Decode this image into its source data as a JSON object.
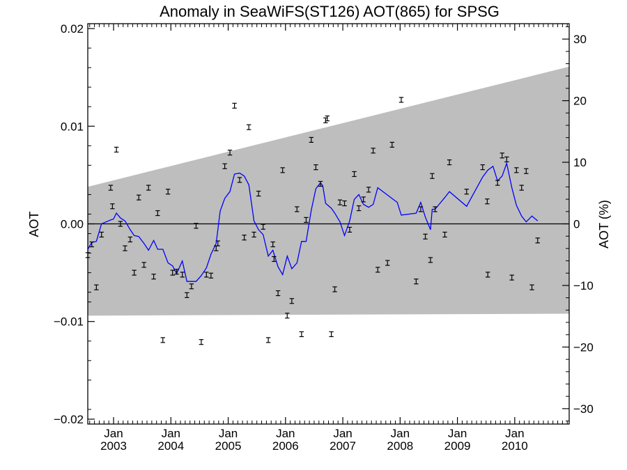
{
  "chart_data": {
    "type": "scatter",
    "title": "Anomaly in SeaWiFS(ST126) AOT(865) for SPSG",
    "ylabel": "AOT",
    "ylabel_right": "AOT (%)",
    "xlim": [
      2002.55,
      2010.95
    ],
    "ylim": [
      -0.0205,
      0.0205
    ],
    "ylim_right": [
      -32.5,
      32.5
    ],
    "x_ticks": [
      {
        "x": 2003.0,
        "top": "Jan",
        "bottom": "2003"
      },
      {
        "x": 2004.0,
        "top": "Jan",
        "bottom": "2004"
      },
      {
        "x": 2005.0,
        "top": "Jan",
        "bottom": "2005"
      },
      {
        "x": 2006.0,
        "top": "Jan",
        "bottom": "2006"
      },
      {
        "x": 2007.0,
        "top": "Jan",
        "bottom": "2007"
      },
      {
        "x": 2008.0,
        "top": "Jan",
        "bottom": "2008"
      },
      {
        "x": 2009.0,
        "top": "Jan",
        "bottom": "2009"
      },
      {
        "x": 2010.0,
        "top": "Jan",
        "bottom": "2010"
      }
    ],
    "y_ticks": [
      {
        "v": 0.02,
        "label": "0.02"
      },
      {
        "v": 0.01,
        "label": "0.01"
      },
      {
        "v": 0.0,
        "label": "0.00"
      },
      {
        "v": -0.01,
        "label": "−0.01"
      },
      {
        "v": -0.02,
        "label": "−0.02"
      }
    ],
    "y_ticks_right": [
      {
        "v": 30,
        "label": "30"
      },
      {
        "v": 20,
        "label": "20"
      },
      {
        "v": 10,
        "label": "10"
      },
      {
        "v": 0,
        "label": "0"
      },
      {
        "v": -10,
        "label": "−10"
      },
      {
        "v": -20,
        "label": "−20"
      },
      {
        "v": -30,
        "label": "−30"
      }
    ],
    "envelope": {
      "x": [
        2002.55,
        2010.95
      ],
      "upper": [
        0.0038,
        0.0161
      ],
      "lower": [
        -0.0094,
        -0.0092
      ],
      "color": "#bebebe"
    },
    "zero_line": 0.0,
    "series": [
      {
        "type": "scatter",
        "error_bars": true,
        "color": "#000000",
        "points": [
          {
            "x": 2002.55,
            "y": -0.0032
          },
          {
            "x": 2002.62,
            "y": -0.0021
          },
          {
            "x": 2002.7,
            "y": -0.0065
          },
          {
            "x": 2002.79,
            "y": -0.0011
          },
          {
            "x": 2002.95,
            "y": 0.0037
          },
          {
            "x": 2002.98,
            "y": 0.0018
          },
          {
            "x": 2003.05,
            "y": 0.0076
          },
          {
            "x": 2003.12,
            "y": 0.0
          },
          {
            "x": 2003.2,
            "y": -0.0025
          },
          {
            "x": 2003.29,
            "y": -0.0016
          },
          {
            "x": 2003.36,
            "y": -0.005
          },
          {
            "x": 2003.44,
            "y": 0.0027
          },
          {
            "x": 2003.53,
            "y": -0.0042
          },
          {
            "x": 2003.61,
            "y": 0.0037
          },
          {
            "x": 2003.7,
            "y": -0.0054
          },
          {
            "x": 2003.77,
            "y": 0.0011
          },
          {
            "x": 2003.86,
            "y": -0.0119
          },
          {
            "x": 2003.95,
            "y": 0.0033
          },
          {
            "x": 2004.03,
            "y": -0.005
          },
          {
            "x": 2004.1,
            "y": -0.0049
          },
          {
            "x": 2004.2,
            "y": -0.0052
          },
          {
            "x": 2004.28,
            "y": -0.0073
          },
          {
            "x": 2004.36,
            "y": -0.0064
          },
          {
            "x": 2004.44,
            "y": -0.0002
          },
          {
            "x": 2004.53,
            "y": -0.0121
          },
          {
            "x": 2004.62,
            "y": -0.0052
          },
          {
            "x": 2004.7,
            "y": -0.0053
          },
          {
            "x": 2004.79,
            "y": -0.0025
          },
          {
            "x": 2004.82,
            "y": -0.002
          },
          {
            "x": 2004.94,
            "y": 0.0059
          },
          {
            "x": 2005.03,
            "y": 0.0073
          },
          {
            "x": 2005.11,
            "y": 0.0121
          },
          {
            "x": 2005.2,
            "y": 0.0045
          },
          {
            "x": 2005.28,
            "y": -0.0014
          },
          {
            "x": 2005.36,
            "y": 0.0099
          },
          {
            "x": 2005.45,
            "y": -0.0011
          },
          {
            "x": 2005.53,
            "y": 0.0031
          },
          {
            "x": 2005.61,
            "y": -0.0003
          },
          {
            "x": 2005.7,
            "y": -0.0119
          },
          {
            "x": 2005.78,
            "y": -0.0021
          },
          {
            "x": 2005.8,
            "y": -0.0036
          },
          {
            "x": 2005.87,
            "y": -0.0071
          },
          {
            "x": 2005.95,
            "y": 0.0055
          },
          {
            "x": 2006.03,
            "y": -0.0094
          },
          {
            "x": 2006.11,
            "y": -0.0079
          },
          {
            "x": 2006.2,
            "y": 0.0015
          },
          {
            "x": 2006.28,
            "y": -0.0113
          },
          {
            "x": 2006.36,
            "y": 0.0004
          },
          {
            "x": 2006.45,
            "y": 0.0086
          },
          {
            "x": 2006.53,
            "y": 0.0058
          },
          {
            "x": 2006.61,
            "y": 0.0041
          },
          {
            "x": 2006.7,
            "y": 0.0106
          },
          {
            "x": 2006.73,
            "y": 0.0108
          },
          {
            "x": 2006.8,
            "y": -0.0113
          },
          {
            "x": 2006.86,
            "y": -0.0067
          },
          {
            "x": 2006.95,
            "y": 0.0022
          },
          {
            "x": 2007.03,
            "y": 0.0021
          },
          {
            "x": 2007.12,
            "y": -0.0006
          },
          {
            "x": 2007.2,
            "y": 0.0051
          },
          {
            "x": 2007.28,
            "y": 0.0016
          },
          {
            "x": 2007.36,
            "y": 0.0025
          },
          {
            "x": 2007.45,
            "y": 0.0035
          },
          {
            "x": 2007.53,
            "y": 0.0075
          },
          {
            "x": 2007.61,
            "y": -0.0047
          },
          {
            "x": 2007.78,
            "y": -0.004
          },
          {
            "x": 2007.86,
            "y": 0.0081
          },
          {
            "x": 2008.02,
            "y": 0.0127
          },
          {
            "x": 2008.28,
            "y": -0.0059
          },
          {
            "x": 2008.36,
            "y": 0.0015
          },
          {
            "x": 2008.44,
            "y": -0.0013
          },
          {
            "x": 2008.53,
            "y": -0.0037
          },
          {
            "x": 2008.56,
            "y": 0.0049
          },
          {
            "x": 2008.61,
            "y": 0.0015
          },
          {
            "x": 2008.78,
            "y": -0.0011
          },
          {
            "x": 2008.86,
            "y": 0.0063
          },
          {
            "x": 2009.16,
            "y": 0.0033
          },
          {
            "x": 2009.44,
            "y": 0.0058
          },
          {
            "x": 2009.52,
            "y": 0.0023
          },
          {
            "x": 2009.53,
            "y": -0.0052
          },
          {
            "x": 2009.7,
            "y": 0.0042
          },
          {
            "x": 2009.78,
            "y": 0.007
          },
          {
            "x": 2009.86,
            "y": 0.0066
          },
          {
            "x": 2009.95,
            "y": -0.0055
          },
          {
            "x": 2010.03,
            "y": 0.0055
          },
          {
            "x": 2010.12,
            "y": 0.0037
          },
          {
            "x": 2010.2,
            "y": 0.0054
          },
          {
            "x": 2010.3,
            "y": -0.0065
          },
          {
            "x": 2010.4,
            "y": -0.0017
          }
        ]
      },
      {
        "type": "line",
        "color": "#0000ff",
        "points": [
          {
            "x": 2002.55,
            "y": -0.0026
          },
          {
            "x": 2002.62,
            "y": -0.0019
          },
          {
            "x": 2002.7,
            "y": -0.0018
          },
          {
            "x": 2002.79,
            "y": 0.0
          },
          {
            "x": 2002.87,
            "y": 0.0002
          },
          {
            "x": 2002.95,
            "y": 0.0004
          },
          {
            "x": 2003.0,
            "y": 0.0005
          },
          {
            "x": 2003.05,
            "y": 0.0011
          },
          {
            "x": 2003.12,
            "y": 0.0006
          },
          {
            "x": 2003.2,
            "y": 0.0003
          },
          {
            "x": 2003.29,
            "y": -0.0006
          },
          {
            "x": 2003.36,
            "y": -0.0012
          },
          {
            "x": 2003.44,
            "y": -0.0013
          },
          {
            "x": 2003.53,
            "y": -0.002
          },
          {
            "x": 2003.61,
            "y": -0.0027
          },
          {
            "x": 2003.7,
            "y": -0.0017
          },
          {
            "x": 2003.77,
            "y": -0.0026
          },
          {
            "x": 2003.86,
            "y": -0.0026
          },
          {
            "x": 2003.95,
            "y": -0.004
          },
          {
            "x": 2004.03,
            "y": -0.0043
          },
          {
            "x": 2004.1,
            "y": -0.0051
          },
          {
            "x": 2004.2,
            "y": -0.0038
          },
          {
            "x": 2004.28,
            "y": -0.0059
          },
          {
            "x": 2004.36,
            "y": -0.0059
          },
          {
            "x": 2004.44,
            "y": -0.0059
          },
          {
            "x": 2004.53,
            "y": -0.0053
          },
          {
            "x": 2004.62,
            "y": -0.0045
          },
          {
            "x": 2004.7,
            "y": -0.0031
          },
          {
            "x": 2004.79,
            "y": -0.002
          },
          {
            "x": 2004.86,
            "y": 0.0013
          },
          {
            "x": 2004.94,
            "y": 0.0026
          },
          {
            "x": 2005.03,
            "y": 0.0033
          },
          {
            "x": 2005.11,
            "y": 0.0051
          },
          {
            "x": 2005.2,
            "y": 0.0052
          },
          {
            "x": 2005.28,
            "y": 0.0049
          },
          {
            "x": 2005.36,
            "y": 0.004
          },
          {
            "x": 2005.45,
            "y": 0.0003
          },
          {
            "x": 2005.53,
            "y": -0.0006
          },
          {
            "x": 2005.61,
            "y": -0.0011
          },
          {
            "x": 2005.7,
            "y": -0.0033
          },
          {
            "x": 2005.78,
            "y": -0.0027
          },
          {
            "x": 2005.87,
            "y": -0.0044
          },
          {
            "x": 2005.95,
            "y": -0.0052
          },
          {
            "x": 2006.03,
            "y": -0.0033
          },
          {
            "x": 2006.11,
            "y": -0.0046
          },
          {
            "x": 2006.2,
            "y": -0.004
          },
          {
            "x": 2006.28,
            "y": -0.0018
          },
          {
            "x": 2006.36,
            "y": -0.0018
          },
          {
            "x": 2006.45,
            "y": 0.0014
          },
          {
            "x": 2006.53,
            "y": 0.0036
          },
          {
            "x": 2006.61,
            "y": 0.0042
          },
          {
            "x": 2006.65,
            "y": 0.0039
          },
          {
            "x": 2006.7,
            "y": 0.0021
          },
          {
            "x": 2006.8,
            "y": 0.0016
          },
          {
            "x": 2006.86,
            "y": 0.0011
          },
          {
            "x": 2006.95,
            "y": 0.0002
          },
          {
            "x": 2007.03,
            "y": -0.0012
          },
          {
            "x": 2007.12,
            "y": 0.0003
          },
          {
            "x": 2007.2,
            "y": 0.0025
          },
          {
            "x": 2007.28,
            "y": 0.003
          },
          {
            "x": 2007.36,
            "y": 0.002
          },
          {
            "x": 2007.45,
            "y": 0.0017
          },
          {
            "x": 2007.53,
            "y": 0.002
          },
          {
            "x": 2007.61,
            "y": 0.0037
          },
          {
            "x": 2007.95,
            "y": 0.0022
          },
          {
            "x": 2008.02,
            "y": 0.0009
          },
          {
            "x": 2008.28,
            "y": 0.0011
          },
          {
            "x": 2008.36,
            "y": 0.0022
          },
          {
            "x": 2008.44,
            "y": 0.0007
          },
          {
            "x": 2008.53,
            "y": -0.0006
          },
          {
            "x": 2008.56,
            "y": 0.0015
          },
          {
            "x": 2008.61,
            "y": 0.0015
          },
          {
            "x": 2008.78,
            "y": 0.0027
          },
          {
            "x": 2008.86,
            "y": 0.0033
          },
          {
            "x": 2009.16,
            "y": 0.0018
          },
          {
            "x": 2009.44,
            "y": 0.0048
          },
          {
            "x": 2009.53,
            "y": 0.0055
          },
          {
            "x": 2009.62,
            "y": 0.0059
          },
          {
            "x": 2009.7,
            "y": 0.0044
          },
          {
            "x": 2009.78,
            "y": 0.0049
          },
          {
            "x": 2009.86,
            "y": 0.0062
          },
          {
            "x": 2009.95,
            "y": 0.0037
          },
          {
            "x": 2010.03,
            "y": 0.0019
          },
          {
            "x": 2010.12,
            "y": 0.0008
          },
          {
            "x": 2010.2,
            "y": 0.0002
          },
          {
            "x": 2010.3,
            "y": 0.0008
          },
          {
            "x": 2010.4,
            "y": 0.0003
          }
        ]
      }
    ]
  }
}
